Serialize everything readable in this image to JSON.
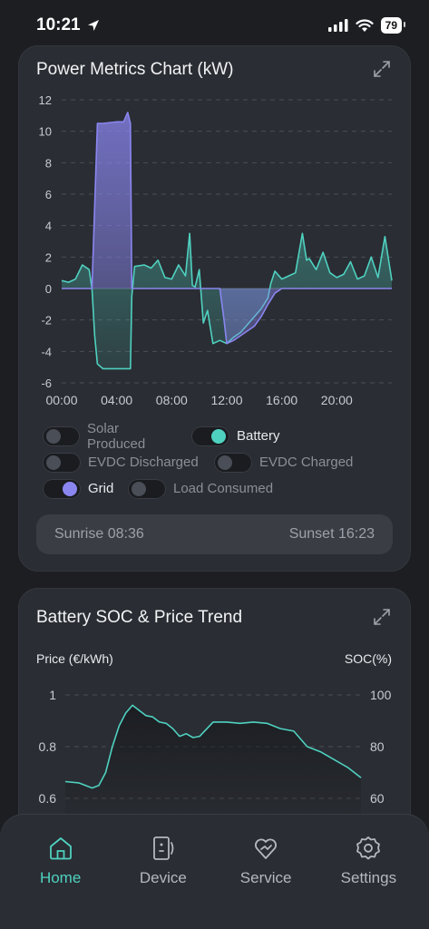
{
  "status": {
    "time": "10:21",
    "battery": "79"
  },
  "power_card": {
    "title": "Power Metrics Chart (kW)",
    "y_ticks": [
      "12",
      "10",
      "8",
      "6",
      "4",
      "2",
      "0",
      "-2",
      "-4",
      "-6"
    ],
    "x_ticks": [
      "00:00",
      "04:00",
      "08:00",
      "12:00",
      "16:00",
      "20:00"
    ],
    "toggles": [
      [
        {
          "label": "Solar Produced",
          "on": false
        },
        {
          "label": "Battery",
          "on": true,
          "color": "#4fd1c0"
        }
      ],
      [
        {
          "label": "EVDC Discharged",
          "on": false
        },
        {
          "label": "EVDC Charged",
          "on": false
        }
      ],
      [
        {
          "label": "Grid",
          "on": true,
          "color": "#8a86f0"
        },
        {
          "label": "Load Consumed",
          "on": false
        }
      ]
    ],
    "sunrise": "Sunrise 08:36",
    "sunset": "Sunset 16:23"
  },
  "soc_card": {
    "title": "Battery SOC & Price Trend",
    "left_axis_title": "Price (€/kWh)",
    "right_axis_title": "SOC(%)",
    "left_ticks": [
      "1",
      "0.8",
      "0.6"
    ],
    "right_ticks": [
      "100",
      "80",
      "60"
    ]
  },
  "nav": {
    "items": [
      {
        "label": "Home",
        "icon": "home-icon",
        "active": true
      },
      {
        "label": "Device",
        "icon": "device-icon",
        "active": false
      },
      {
        "label": "Service",
        "icon": "service-icon",
        "active": false
      },
      {
        "label": "Settings",
        "icon": "settings-icon",
        "active": false
      }
    ]
  },
  "colors": {
    "battery": "#4fd1c0",
    "grid": "#8a86f0",
    "accent": "#4fd1c0"
  },
  "chart_data": [
    {
      "type": "line",
      "title": "Power Metrics Chart (kW)",
      "ylim": [
        -6,
        12
      ],
      "xlim_hours": [
        0,
        24
      ],
      "grid": true,
      "series": [
        {
          "name": "Battery",
          "x_hours": [
            0,
            0.5,
            1,
            1.5,
            2,
            2.2,
            2.4,
            2.6,
            3,
            4,
            5,
            5.1,
            5.3,
            6,
            6.5,
            7,
            7.5,
            8,
            8.5,
            9,
            9.3,
            9.5,
            9.7,
            10,
            10.3,
            10.6,
            11,
            11.5,
            12,
            12.5,
            13,
            13.5,
            14,
            14.5,
            15,
            15.2,
            15.5,
            16,
            16.5,
            17,
            17.5,
            17.8,
            18,
            18.5,
            19,
            19.5,
            20,
            20.5,
            21,
            21.5,
            22,
            22.5,
            23,
            23.5,
            24
          ],
          "y": [
            0.5,
            0.4,
            0.6,
            1.5,
            1.2,
            0,
            -3,
            -4.8,
            -5.1,
            -5.1,
            -5.1,
            -0.5,
            1.4,
            1.5,
            1.3,
            1.8,
            0.7,
            0.6,
            1.5,
            0.8,
            3.5,
            0.2,
            0.1,
            1.2,
            -2.2,
            -1.4,
            -3.5,
            -3.3,
            -3.5,
            -3.1,
            -2.8,
            -2.3,
            -1.8,
            -1.3,
            -0.6,
            0.3,
            1.1,
            0.6,
            0.8,
            1.0,
            3.5,
            1.8,
            1.9,
            1.2,
            2.3,
            1.0,
            0.7,
            0.9,
            1.7,
            0.6,
            0.8,
            2.0,
            0.7,
            3.3,
            0.5
          ]
        },
        {
          "name": "Grid",
          "x_hours": [
            0,
            2,
            2.2,
            2.6,
            3,
            4,
            4.5,
            4.8,
            5,
            5.1,
            5.3,
            10,
            11.5,
            11.8,
            12,
            12.5,
            13,
            14,
            14.5,
            15,
            15.5,
            16,
            17,
            24
          ],
          "y": [
            0,
            0,
            0,
            10.5,
            10.5,
            10.6,
            10.6,
            11.2,
            10.5,
            0,
            0,
            0,
            0,
            -2.0,
            -3.5,
            -3.3,
            -3.0,
            -2.4,
            -1.8,
            -1.0,
            -0.3,
            0,
            0,
            0
          ]
        }
      ]
    },
    {
      "type": "line",
      "title": "Battery SOC & Price Trend",
      "ylabel": "Price (€/kWh)",
      "ylabel_right": "SOC(%)",
      "ylim": [
        0.6,
        1
      ],
      "ylim_right": [
        60,
        100
      ],
      "series": [
        {
          "x_hours": [
            0,
            1,
            2,
            2.5,
            3,
            3.5,
            4,
            4.5,
            5,
            5.5,
            6,
            6.5,
            7,
            7.5,
            8,
            8.5,
            9,
            9.5,
            10,
            11,
            12,
            13,
            14,
            15,
            16,
            17,
            18,
            19,
            20,
            21,
            22
          ],
          "y": [
            0.665,
            0.66,
            0.64,
            0.65,
            0.7,
            0.8,
            0.88,
            0.93,
            0.96,
            0.94,
            0.92,
            0.915,
            0.895,
            0.89,
            0.87,
            0.84,
            0.85,
            0.835,
            0.84,
            0.895,
            0.895,
            0.89,
            0.895,
            0.89,
            0.87,
            0.86,
            0.8,
            0.78,
            0.75,
            0.72,
            0.68
          ]
        }
      ]
    }
  ]
}
